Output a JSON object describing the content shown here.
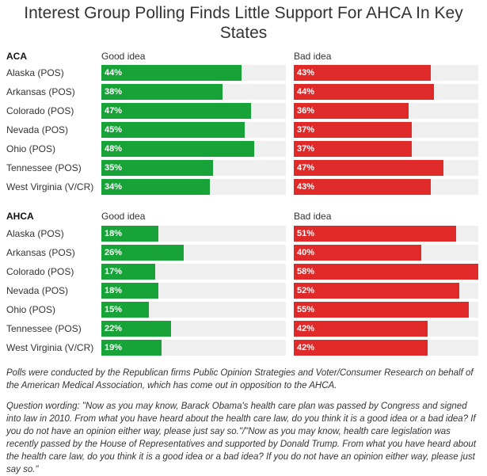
{
  "chart_data": {
    "type": "bar",
    "title": "Interest Group Polling Finds Little Support For AHCA In Key States",
    "panels": [
      {
        "heading": "ACA",
        "categories": [
          "Alaska (POS)",
          "Arkansas (POS)",
          "Colorado (POS)",
          "Nevada (POS)",
          "Ohio (POS)",
          "Tennessee (POS)",
          "West Virginia (V/CR)"
        ],
        "series": [
          {
            "name": "Good idea",
            "values": [
              44,
              38,
              47,
              45,
              48,
              35,
              34
            ],
            "color": "#17a338"
          },
          {
            "name": "Bad idea",
            "values": [
              43,
              44,
              36,
              37,
              37,
              47,
              43
            ],
            "color": "#e02a2a"
          }
        ]
      },
      {
        "heading": "AHCA",
        "categories": [
          "Alaska (POS)",
          "Arkansas (POS)",
          "Colorado (POS)",
          "Nevada (POS)",
          "Ohio (POS)",
          "Tennessee (POS)",
          "West Virginia (V/CR)"
        ],
        "series": [
          {
            "name": "Good idea",
            "values": [
              18,
              26,
              17,
              18,
              15,
              22,
              19
            ],
            "color": "#17a338"
          },
          {
            "name": "Bad idea",
            "values": [
              51,
              40,
              58,
              52,
              55,
              42,
              42
            ],
            "color": "#e02a2a"
          }
        ]
      }
    ],
    "value_suffix": "%",
    "xlim": [
      0,
      58
    ]
  },
  "notes": {
    "source": "Polls were conducted by the Republican firms Public Opinion Strategies and Voter/Consumer Research on behalf of the American Medical Association, which has come out in opposition to the AHCA.",
    "question": "Question wording: \"Now as you may know, Barack Obama's health care plan was passed by Congress and signed into law in 2010. From what you have heard about the health care law, do you think it is a good idea or a bad idea? If you do not have an opinion either way, please just say so.\"/\"Now as you may know, health care legislation was recently passed by the House of Representatives and supported by Donald Trump. From what you have heard about the health care law, do you think it is a good idea or a bad idea? If you do not have an opinion either way, please just say so.\""
  }
}
